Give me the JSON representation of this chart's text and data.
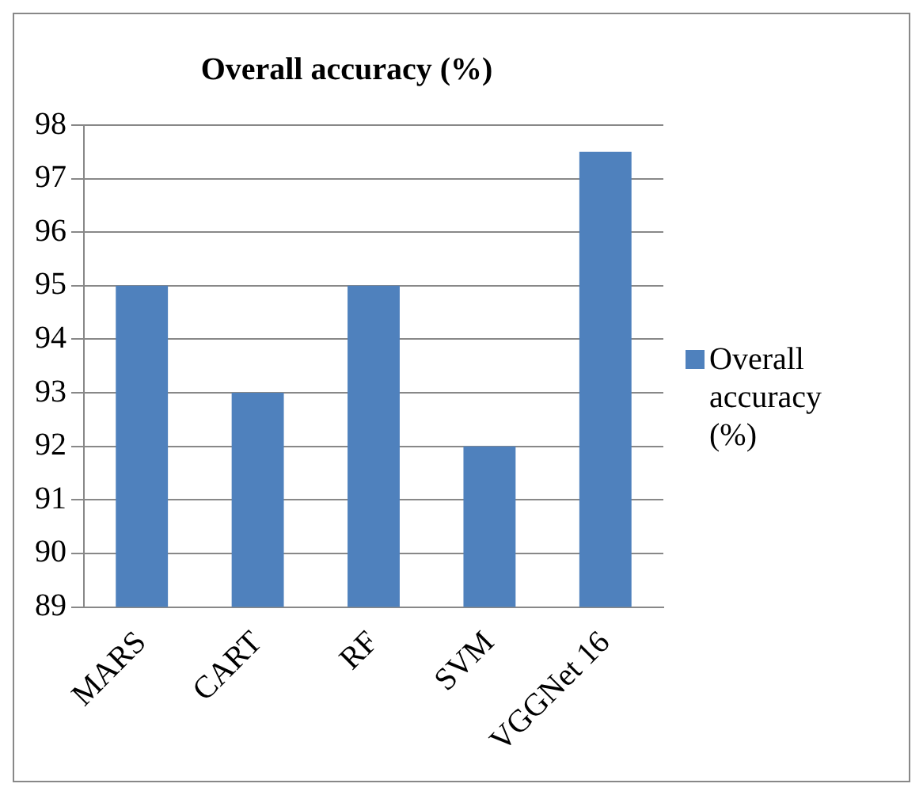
{
  "chart_data": {
    "type": "bar",
    "title": "Overall accuracy (%)",
    "categories": [
      "MARS",
      "CART",
      "RF",
      "SVM",
      "VGGNet 16"
    ],
    "series": [
      {
        "name": "Overall accuracy (%)",
        "color": "#4f81bd",
        "values": [
          95,
          93,
          95,
          92,
          97.5
        ]
      }
    ],
    "ylim": [
      89,
      98
    ],
    "yticks": [
      89,
      90,
      91,
      92,
      93,
      94,
      95,
      96,
      97,
      98
    ],
    "grid": "y",
    "legend": "right"
  }
}
